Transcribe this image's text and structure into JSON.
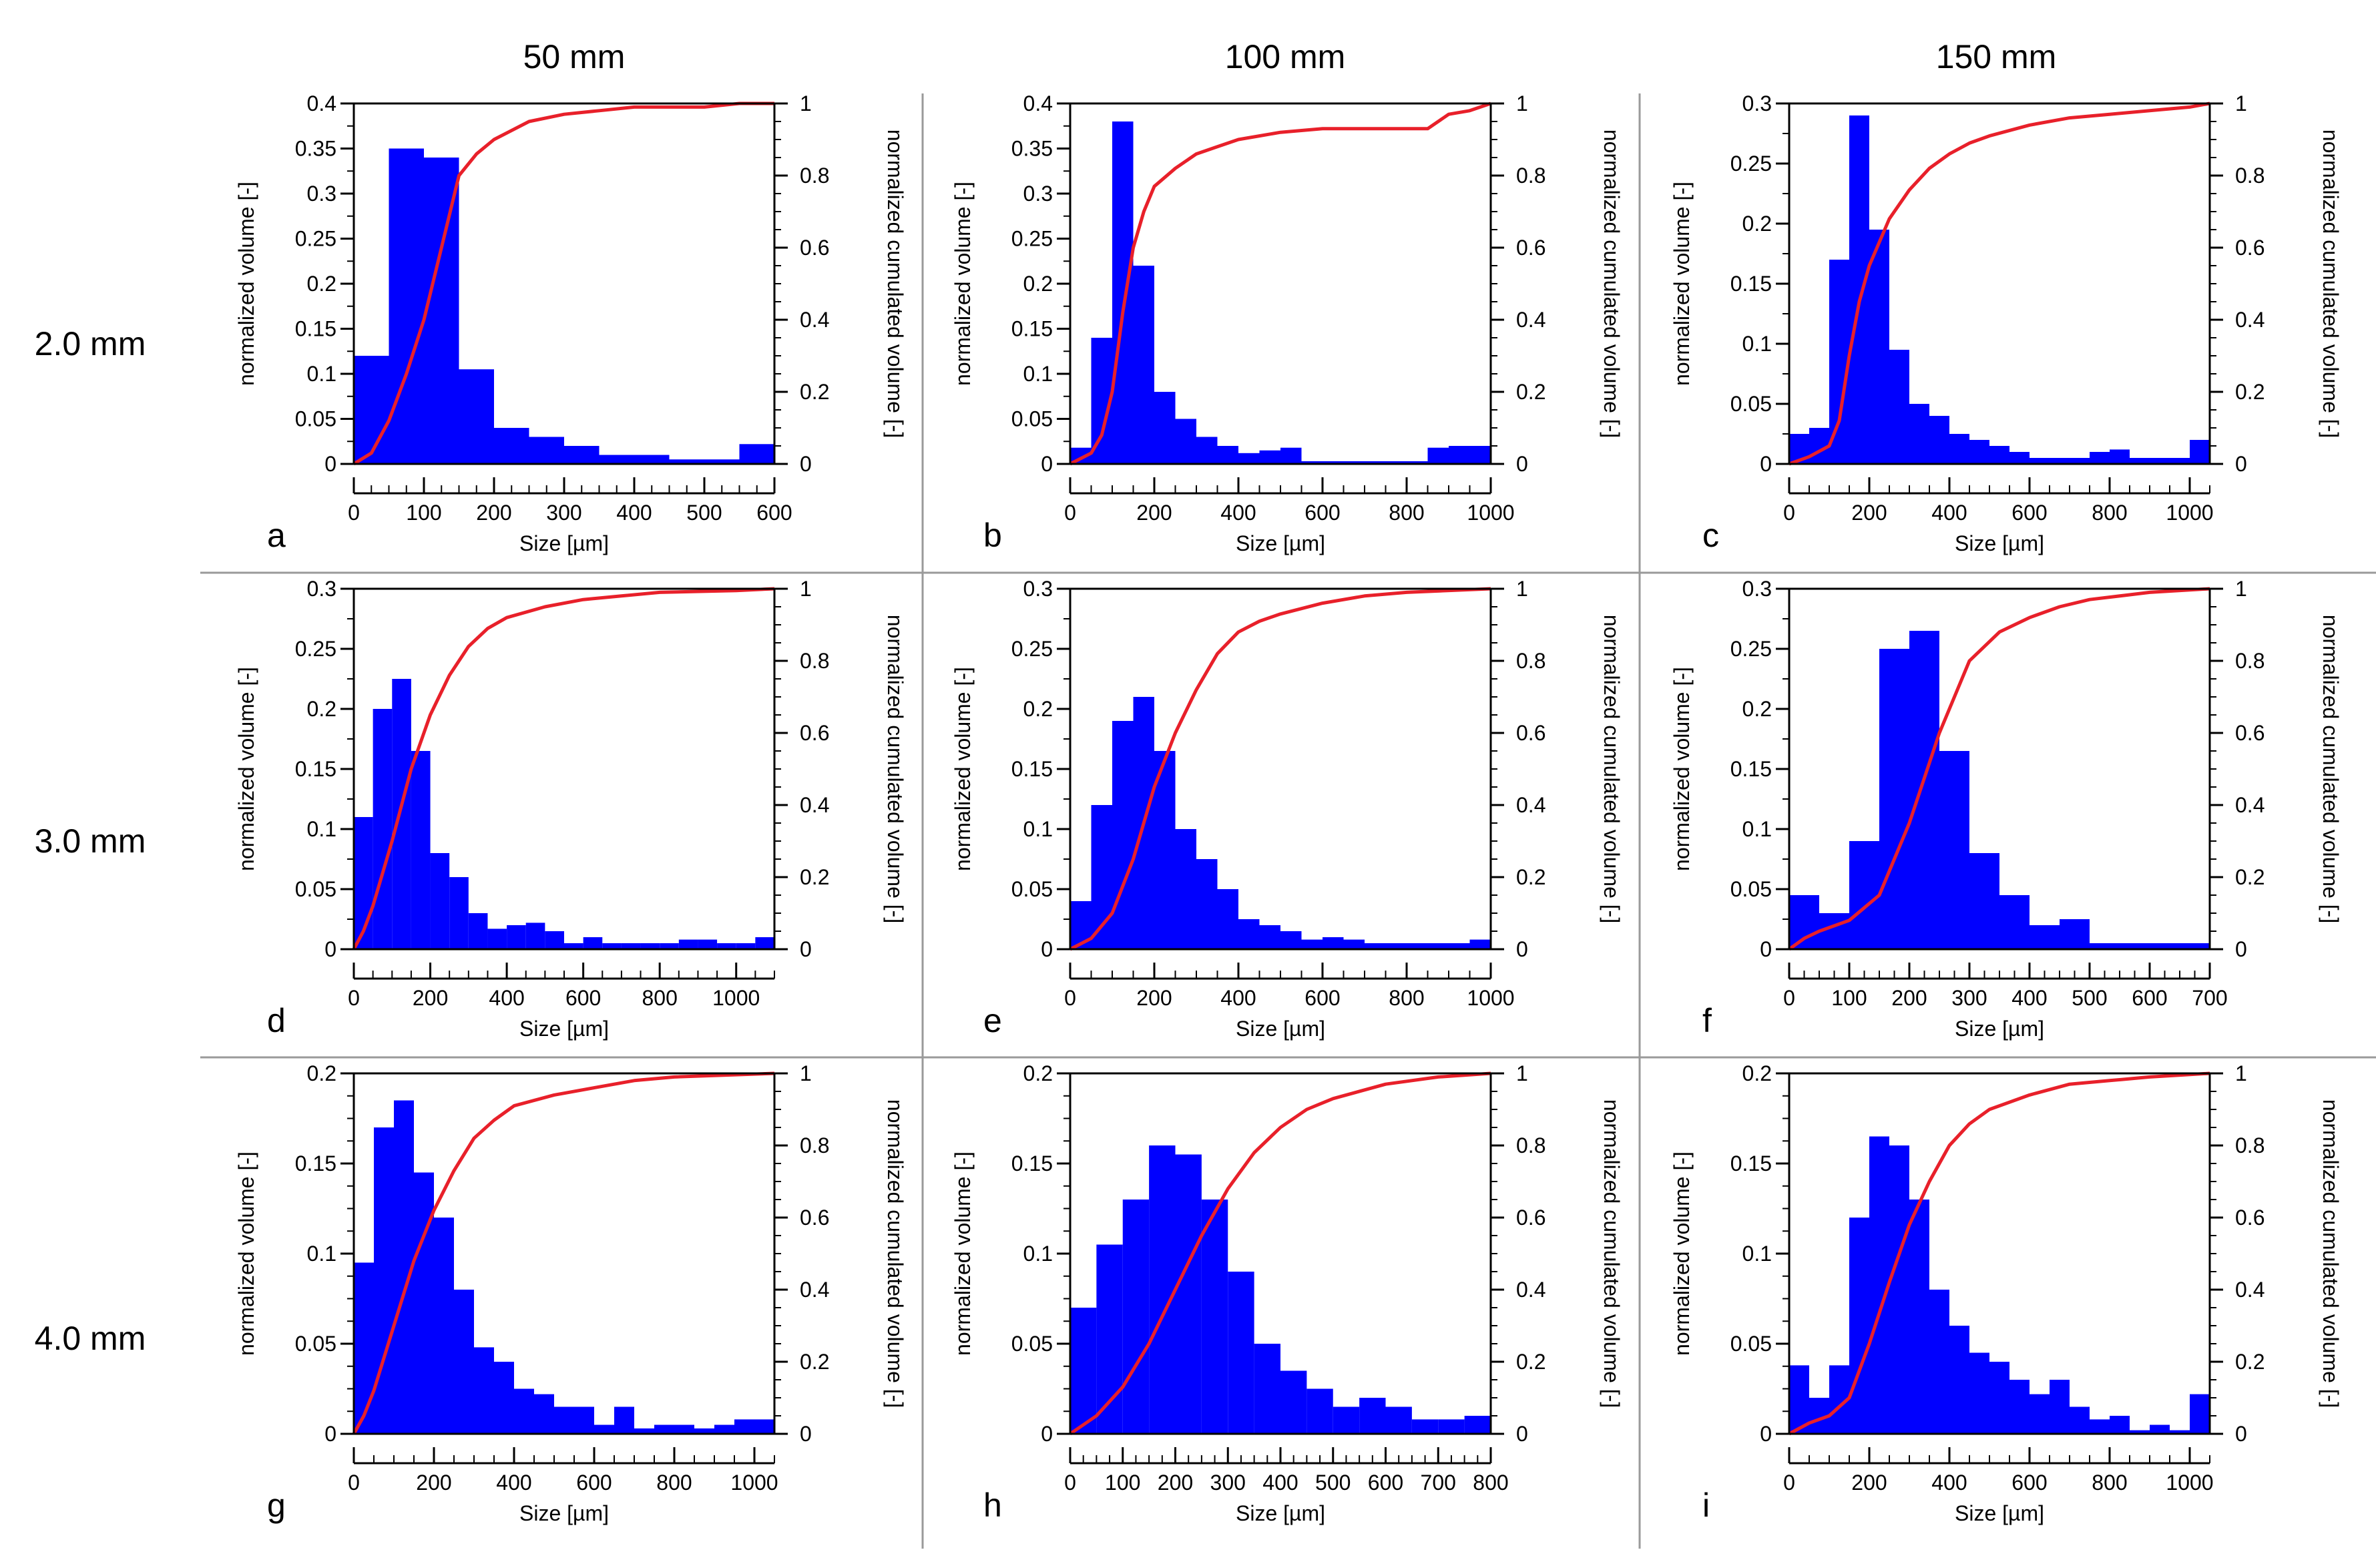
{
  "figure": {
    "column_headers": [
      "50 mm",
      "100 mm",
      "150 mm"
    ],
    "row_headers": [
      "2.0 mm",
      "3.0 mm",
      "4.0 mm"
    ],
    "colors": {
      "bar": "#0000ff",
      "bar_edge": "#0000cc",
      "line": "#e8202a",
      "frame": "#000000",
      "divider": "#9a9a9a"
    }
  },
  "chart_data": [
    {
      "type": "bar",
      "panel": "a",
      "xlabel": "Size [µm]",
      "ylabel": "normalized volume [-]",
      "y2label": "normalized cumulated volume [-]",
      "xlim": [
        0,
        600
      ],
      "xticks": [
        0,
        100,
        200,
        300,
        400,
        500,
        600
      ],
      "xminor": 25,
      "ylim": [
        0,
        0.4
      ],
      "yticks": [
        "0",
        "0.05",
        "0.1",
        "0.15",
        "0.2",
        "0.25",
        "0.3",
        "0.35",
        "0.4"
      ],
      "yminor": 0.025,
      "y2lim": [
        0,
        1
      ],
      "y2ticks": [
        "0",
        "0.2",
        "0.4",
        "0.6",
        "0.8",
        "1"
      ],
      "y2minor": 0.05,
      "bin_edges": [
        0,
        50,
        100,
        150,
        200,
        250,
        300,
        350,
        400,
        450,
        500,
        550,
        600
      ],
      "values": [
        0.12,
        0.35,
        0.34,
        0.105,
        0.04,
        0.03,
        0.02,
        0.01,
        0.01,
        0.005,
        0.005,
        0.022
      ],
      "cumulative": [
        [
          0,
          0
        ],
        [
          25,
          0.03
        ],
        [
          50,
          0.12
        ],
        [
          75,
          0.25
        ],
        [
          100,
          0.4
        ],
        [
          125,
          0.6
        ],
        [
          150,
          0.8
        ],
        [
          175,
          0.86
        ],
        [
          200,
          0.9
        ],
        [
          250,
          0.95
        ],
        [
          300,
          0.97
        ],
        [
          350,
          0.98
        ],
        [
          400,
          0.99
        ],
        [
          450,
          0.99
        ],
        [
          500,
          0.99
        ],
        [
          550,
          1
        ],
        [
          600,
          1
        ]
      ]
    },
    {
      "type": "bar",
      "panel": "b",
      "xlabel": "Size [µm]",
      "ylabel": "normalized volume [-]",
      "y2label": "normalized cumulated volume [-]",
      "xlim": [
        0,
        1000
      ],
      "xticks": [
        0,
        200,
        400,
        600,
        800,
        1000
      ],
      "xminor": 50,
      "ylim": [
        0,
        0.4
      ],
      "yticks": [
        "0",
        "0.05",
        "0.1",
        "0.15",
        "0.2",
        "0.25",
        "0.3",
        "0.35",
        "0.4"
      ],
      "yminor": 0.025,
      "y2lim": [
        0,
        1
      ],
      "y2ticks": [
        "0",
        "0.2",
        "0.4",
        "0.6",
        "0.8",
        "1"
      ],
      "y2minor": 0.05,
      "bin_edges": [
        0,
        50,
        100,
        150,
        200,
        250,
        300,
        350,
        400,
        450,
        500,
        550,
        600,
        650,
        700,
        750,
        800,
        850,
        900,
        950,
        1000
      ],
      "values": [
        0.018,
        0.14,
        0.38,
        0.22,
        0.08,
        0.05,
        0.03,
        0.02,
        0.012,
        0.015,
        0.018,
        0.003,
        0.003,
        0.003,
        0.003,
        0.003,
        0.003,
        0.018,
        0.02,
        0.02
      ],
      "cumulative": [
        [
          0,
          0
        ],
        [
          50,
          0.03
        ],
        [
          75,
          0.08
        ],
        [
          100,
          0.2
        ],
        [
          125,
          0.42
        ],
        [
          150,
          0.6
        ],
        [
          175,
          0.7
        ],
        [
          200,
          0.77
        ],
        [
          250,
          0.82
        ],
        [
          300,
          0.86
        ],
        [
          350,
          0.88
        ],
        [
          400,
          0.9
        ],
        [
          450,
          0.91
        ],
        [
          500,
          0.92
        ],
        [
          600,
          0.93
        ],
        [
          700,
          0.93
        ],
        [
          800,
          0.93
        ],
        [
          850,
          0.93
        ],
        [
          900,
          0.97
        ],
        [
          950,
          0.98
        ],
        [
          1000,
          1
        ]
      ]
    },
    {
      "type": "bar",
      "panel": "c",
      "xlabel": "Size [µm]",
      "ylabel": "normalized volume [-]",
      "y2label": "normalized cumulated volume [-]",
      "xlim": [
        0,
        1050
      ],
      "xticks": [
        0,
        200,
        400,
        600,
        800,
        1000
      ],
      "xminor": 50,
      "ylim": [
        0,
        0.3
      ],
      "yticks": [
        "0",
        "0.05",
        "0.1",
        "0.15",
        "0.2",
        "0.25",
        "0.3"
      ],
      "yminor": 0.025,
      "y2lim": [
        0,
        1
      ],
      "y2ticks": [
        "0",
        "0.2",
        "0.4",
        "0.6",
        "0.8",
        "1"
      ],
      "y2minor": 0.05,
      "bin_edges": [
        0,
        50,
        100,
        150,
        200,
        250,
        300,
        350,
        400,
        450,
        500,
        550,
        600,
        650,
        700,
        750,
        800,
        850,
        900,
        950,
        1000,
        1050
      ],
      "values": [
        0.025,
        0.03,
        0.17,
        0.29,
        0.195,
        0.095,
        0.05,
        0.04,
        0.025,
        0.02,
        0.015,
        0.01,
        0.005,
        0.005,
        0.005,
        0.01,
        0.012,
        0.005,
        0.005,
        0.005,
        0.02
      ],
      "cumulative": [
        [
          0,
          0
        ],
        [
          50,
          0.02
        ],
        [
          100,
          0.05
        ],
        [
          125,
          0.12
        ],
        [
          150,
          0.3
        ],
        [
          175,
          0.45
        ],
        [
          200,
          0.55
        ],
        [
          250,
          0.68
        ],
        [
          300,
          0.76
        ],
        [
          350,
          0.82
        ],
        [
          400,
          0.86
        ],
        [
          450,
          0.89
        ],
        [
          500,
          0.91
        ],
        [
          600,
          0.94
        ],
        [
          700,
          0.96
        ],
        [
          800,
          0.97
        ],
        [
          900,
          0.98
        ],
        [
          1000,
          0.99
        ],
        [
          1050,
          1
        ]
      ]
    },
    {
      "type": "bar",
      "panel": "d",
      "xlabel": "Size [µm]",
      "ylabel": "normalized volume [-]",
      "y2label": "normalized cumulated volume [-]",
      "xlim": [
        0,
        1100
      ],
      "xticks": [
        0,
        200,
        400,
        600,
        800,
        1000
      ],
      "xminor": 50,
      "ylim": [
        0,
        0.3
      ],
      "yticks": [
        "0",
        "0.05",
        "0.1",
        "0.15",
        "0.2",
        "0.25",
        "0.3"
      ],
      "yminor": 0.025,
      "y2lim": [
        0,
        1
      ],
      "y2ticks": [
        "0",
        "0.2",
        "0.4",
        "0.6",
        "0.8",
        "1"
      ],
      "y2minor": 0.05,
      "bin_edges": [
        0,
        50,
        100,
        150,
        200,
        250,
        300,
        350,
        400,
        450,
        500,
        550,
        600,
        650,
        700,
        750,
        800,
        850,
        900,
        950,
        1000,
        1050,
        1100
      ],
      "values": [
        0.11,
        0.2,
        0.225,
        0.165,
        0.08,
        0.06,
        0.03,
        0.017,
        0.02,
        0.022,
        0.015,
        0.005,
        0.01,
        0.005,
        0.005,
        0.005,
        0.005,
        0.008,
        0.008,
        0.005,
        0.005,
        0.01
      ],
      "cumulative": [
        [
          0,
          0
        ],
        [
          25,
          0.05
        ],
        [
          50,
          0.12
        ],
        [
          100,
          0.3
        ],
        [
          150,
          0.5
        ],
        [
          200,
          0.65
        ],
        [
          250,
          0.76
        ],
        [
          300,
          0.84
        ],
        [
          350,
          0.89
        ],
        [
          400,
          0.92
        ],
        [
          500,
          0.95
        ],
        [
          600,
          0.97
        ],
        [
          700,
          0.98
        ],
        [
          800,
          0.99
        ],
        [
          1000,
          0.995
        ],
        [
          1100,
          1
        ]
      ]
    },
    {
      "type": "bar",
      "panel": "e",
      "xlabel": "Size [µm]",
      "ylabel": "normalized volume [-]",
      "y2label": "normalized cumulated volume [-]",
      "xlim": [
        0,
        1000
      ],
      "xticks": [
        0,
        200,
        400,
        600,
        800,
        1000
      ],
      "xminor": 50,
      "ylim": [
        0,
        0.3
      ],
      "yticks": [
        "0",
        "0.05",
        "0.1",
        "0.15",
        "0.2",
        "0.25",
        "0.3"
      ],
      "yminor": 0.025,
      "y2lim": [
        0,
        1
      ],
      "y2ticks": [
        "0",
        "0.2",
        "0.4",
        "0.6",
        "0.8",
        "1"
      ],
      "y2minor": 0.05,
      "bin_edges": [
        0,
        50,
        100,
        150,
        200,
        250,
        300,
        350,
        400,
        450,
        500,
        550,
        600,
        650,
        700,
        750,
        800,
        850,
        900,
        950,
        1000
      ],
      "values": [
        0.04,
        0.12,
        0.19,
        0.21,
        0.165,
        0.1,
        0.075,
        0.05,
        0.025,
        0.02,
        0.015,
        0.008,
        0.01,
        0.008,
        0.005,
        0.005,
        0.005,
        0.005,
        0.005,
        0.008
      ],
      "cumulative": [
        [
          0,
          0
        ],
        [
          50,
          0.03
        ],
        [
          100,
          0.1
        ],
        [
          150,
          0.25
        ],
        [
          200,
          0.45
        ],
        [
          250,
          0.6
        ],
        [
          300,
          0.72
        ],
        [
          350,
          0.82
        ],
        [
          400,
          0.88
        ],
        [
          450,
          0.91
        ],
        [
          500,
          0.93
        ],
        [
          600,
          0.96
        ],
        [
          700,
          0.98
        ],
        [
          800,
          0.99
        ],
        [
          1000,
          1
        ]
      ]
    },
    {
      "type": "bar",
      "panel": "f",
      "xlabel": "Size [µm]",
      "ylabel": "normalized volume [-]",
      "y2label": "normalized cumulated volume [-]",
      "xlim": [
        0,
        700
      ],
      "xticks": [
        0,
        100,
        200,
        300,
        400,
        500,
        600,
        700
      ],
      "xminor": 25,
      "ylim": [
        0,
        0.3
      ],
      "yticks": [
        "0",
        "0.05",
        "0.1",
        "0.15",
        "0.2",
        "0.25",
        "0.3"
      ],
      "yminor": 0.025,
      "y2lim": [
        0,
        1
      ],
      "y2ticks": [
        "0",
        "0.2",
        "0.4",
        "0.6",
        "0.8",
        "1"
      ],
      "y2minor": 0.05,
      "bin_edges": [
        0,
        50,
        100,
        150,
        200,
        250,
        300,
        350,
        400,
        450,
        500,
        550,
        600,
        650,
        700
      ],
      "values": [
        0.045,
        0.03,
        0.09,
        0.25,
        0.265,
        0.165,
        0.08,
        0.045,
        0.02,
        0.025,
        0.005,
        0.005,
        0.005,
        0.005
      ],
      "cumulative": [
        [
          0,
          0
        ],
        [
          25,
          0.03
        ],
        [
          50,
          0.05
        ],
        [
          100,
          0.08
        ],
        [
          150,
          0.15
        ],
        [
          200,
          0.35
        ],
        [
          250,
          0.6
        ],
        [
          300,
          0.8
        ],
        [
          350,
          0.88
        ],
        [
          400,
          0.92
        ],
        [
          450,
          0.95
        ],
        [
          500,
          0.97
        ],
        [
          600,
          0.99
        ],
        [
          700,
          1
        ]
      ]
    },
    {
      "type": "bar",
      "panel": "g",
      "xlabel": "Size [µm]",
      "ylabel": "normalized volume [-]",
      "y2label": "normalized cumulated volume [-]",
      "xlim": [
        0,
        1050
      ],
      "xticks": [
        0,
        200,
        400,
        600,
        800,
        1000
      ],
      "xminor": 50,
      "ylim": [
        0,
        0.2
      ],
      "yticks": [
        "0",
        "0.05",
        "0.1",
        "0.15",
        "0.2"
      ],
      "yminor": 0.0125,
      "y2lim": [
        0,
        1
      ],
      "y2ticks": [
        "0",
        "0.2",
        "0.4",
        "0.6",
        "0.8",
        "1"
      ],
      "y2minor": 0.05,
      "bin_edges": [
        0,
        50,
        100,
        150,
        200,
        250,
        300,
        350,
        400,
        450,
        500,
        550,
        600,
        650,
        700,
        750,
        800,
        850,
        900,
        950,
        1000,
        1050
      ],
      "values": [
        0.095,
        0.17,
        0.185,
        0.145,
        0.12,
        0.08,
        0.048,
        0.04,
        0.025,
        0.022,
        0.015,
        0.015,
        0.005,
        0.015,
        0.003,
        0.005,
        0.005,
        0.003,
        0.005,
        0.008,
        0.008
      ],
      "cumulative": [
        [
          0,
          0
        ],
        [
          25,
          0.05
        ],
        [
          50,
          0.12
        ],
        [
          100,
          0.3
        ],
        [
          150,
          0.48
        ],
        [
          200,
          0.62
        ],
        [
          250,
          0.73
        ],
        [
          300,
          0.82
        ],
        [
          350,
          0.87
        ],
        [
          400,
          0.91
        ],
        [
          500,
          0.94
        ],
        [
          600,
          0.96
        ],
        [
          700,
          0.98
        ],
        [
          800,
          0.99
        ],
        [
          1050,
          1
        ]
      ]
    },
    {
      "type": "bar",
      "panel": "h",
      "xlabel": "Size [µm]",
      "ylabel": "normalized volume [-]",
      "y2label": "normalized cumulated volume [-]",
      "xlim": [
        0,
        800
      ],
      "xticks": [
        0,
        100,
        200,
        300,
        400,
        500,
        600,
        700,
        800
      ],
      "xminor": 25,
      "ylim": [
        0,
        0.2
      ],
      "yticks": [
        "0",
        "0.05",
        "0.1",
        "0.15",
        "0.2"
      ],
      "yminor": 0.0125,
      "y2lim": [
        0,
        1
      ],
      "y2ticks": [
        "0",
        "0.2",
        "0.4",
        "0.6",
        "0.8",
        "1"
      ],
      "y2minor": 0.05,
      "bin_edges": [
        0,
        50,
        100,
        150,
        200,
        250,
        300,
        350,
        400,
        450,
        500,
        550,
        600,
        650,
        700,
        750,
        800
      ],
      "values": [
        0.07,
        0.105,
        0.13,
        0.16,
        0.155,
        0.13,
        0.09,
        0.05,
        0.035,
        0.025,
        0.015,
        0.02,
        0.015,
        0.008,
        0.008,
        0.01
      ],
      "cumulative": [
        [
          0,
          0
        ],
        [
          50,
          0.05
        ],
        [
          100,
          0.13
        ],
        [
          150,
          0.25
        ],
        [
          200,
          0.4
        ],
        [
          250,
          0.55
        ],
        [
          300,
          0.68
        ],
        [
          350,
          0.78
        ],
        [
          400,
          0.85
        ],
        [
          450,
          0.9
        ],
        [
          500,
          0.93
        ],
        [
          600,
          0.97
        ],
        [
          700,
          0.99
        ],
        [
          800,
          1
        ]
      ]
    },
    {
      "type": "bar",
      "panel": "i",
      "xlabel": "Size [µm]",
      "ylabel": "normalized volume [-]",
      "y2label": "normalized cumulated volume [-]",
      "xlim": [
        0,
        1050
      ],
      "xticks": [
        0,
        200,
        400,
        600,
        800,
        1000
      ],
      "xminor": 50,
      "ylim": [
        0,
        0.2
      ],
      "yticks": [
        "0",
        "0.05",
        "0.1",
        "0.15",
        "0.2"
      ],
      "yminor": 0.0125,
      "y2lim": [
        0,
        1
      ],
      "y2ticks": [
        "0",
        "0.2",
        "0.4",
        "0.6",
        "0.8",
        "1"
      ],
      "y2minor": 0.05,
      "bin_edges": [
        0,
        50,
        100,
        150,
        200,
        250,
        300,
        350,
        400,
        450,
        500,
        550,
        600,
        650,
        700,
        750,
        800,
        850,
        900,
        950,
        1000,
        1050
      ],
      "values": [
        0.038,
        0.02,
        0.038,
        0.12,
        0.165,
        0.16,
        0.13,
        0.08,
        0.06,
        0.045,
        0.04,
        0.03,
        0.022,
        0.03,
        0.015,
        0.008,
        0.01,
        0.002,
        0.005,
        0.002,
        0.022
      ],
      "cumulative": [
        [
          0,
          0
        ],
        [
          50,
          0.03
        ],
        [
          100,
          0.05
        ],
        [
          150,
          0.1
        ],
        [
          200,
          0.25
        ],
        [
          250,
          0.42
        ],
        [
          300,
          0.58
        ],
        [
          350,
          0.7
        ],
        [
          400,
          0.8
        ],
        [
          450,
          0.86
        ],
        [
          500,
          0.9
        ],
        [
          600,
          0.94
        ],
        [
          700,
          0.97
        ],
        [
          800,
          0.98
        ],
        [
          900,
          0.99
        ],
        [
          1050,
          1
        ]
      ]
    }
  ]
}
